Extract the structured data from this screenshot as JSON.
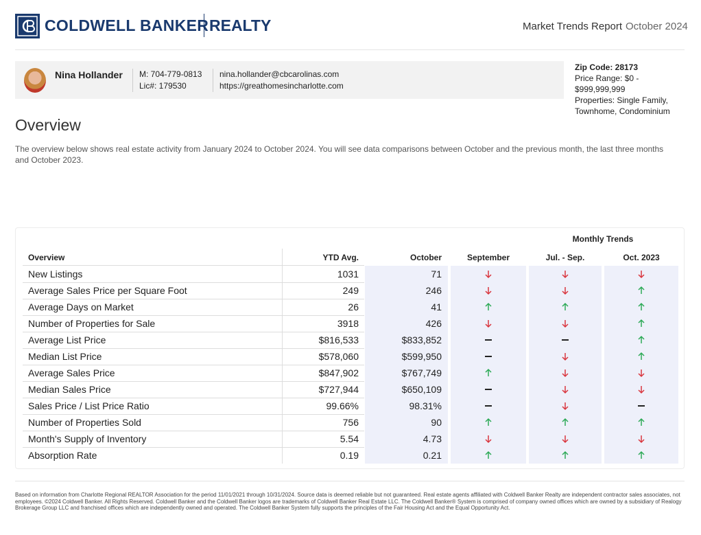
{
  "header": {
    "brand": "COLDWELL BANKER",
    "brand_sub": "REALTY",
    "report_title": "Market Trends Report",
    "report_date": "October 2024"
  },
  "agent": {
    "name": "Nina Hollander",
    "phone": "M: 704-779-0813",
    "license": "Lic#: 179530",
    "email": "nina.hollander@cbcarolinas.com",
    "website": "https://greathomesincharlotte.com"
  },
  "filters": {
    "zip": "Zip Code: 28173",
    "price": "Price Range: $0 - $999,999,999",
    "properties": "Properties: Single Family, Townhome, Condominium"
  },
  "overview": {
    "title": "Overview",
    "text": "The overview below shows real estate activity from January 2024 to October 2024. You will see data comparisons between October and the previous month, the last three months and October 2023."
  },
  "table": {
    "group_header": "Monthly Trends",
    "columns": [
      "Overview",
      "YTD Avg.",
      "October",
      "September",
      "Jul. - Sep.",
      "Oct. 2023"
    ],
    "rows": [
      [
        "New Listings",
        "1031",
        "71"
      ],
      [
        "Average Sales Price per Square Foot",
        "249",
        "246"
      ],
      [
        "Average Days on Market",
        "26",
        "41"
      ],
      [
        "Number of Properties for Sale",
        "3918",
        "426"
      ],
      [
        "Average List Price",
        "$816,533",
        "$833,852"
      ],
      [
        "Median List Price",
        "$578,060",
        "$599,950"
      ],
      [
        "Average Sales Price",
        "$847,902",
        "$767,749"
      ],
      [
        "Median Sales Price",
        "$727,944",
        "$650,109"
      ],
      [
        "Sales Price / List Price Ratio",
        "99.66%",
        "98.31%"
      ],
      [
        "Number of Properties Sold",
        "756",
        "90"
      ],
      [
        "Month's Supply of Inventory",
        "5.54",
        "4.73"
      ],
      [
        "Absorption Rate",
        "0.19",
        "0.21"
      ]
    ],
    "trends": [
      [
        "down",
        "down",
        "down"
      ],
      [
        "down",
        "down",
        "up"
      ],
      [
        "up",
        "up",
        "up"
      ],
      [
        "down",
        "down",
        "up"
      ],
      [
        "flat",
        "flat",
        "up"
      ],
      [
        "flat",
        "down",
        "up"
      ],
      [
        "up",
        "down",
        "down"
      ],
      [
        "flat",
        "down",
        "down"
      ],
      [
        "flat",
        "down",
        "flat"
      ],
      [
        "up",
        "up",
        "up"
      ],
      [
        "down",
        "down",
        "down"
      ],
      [
        "up",
        "up",
        "up"
      ]
    ]
  },
  "footer": {
    "text": "Based on information from Charlotte Regional REALTOR Association for the period 11/01/2021 through 10/31/2024. Source data is deemed reliable but not guaranteed. Real estate agents affiliated with Coldwell Banker Realty are independent contractor sales associates, not employees. ©2024 Coldwell Banker. All Rights Reserved. Coldwell Banker and the Coldwell Banker logos are trademarks of Coldwell Banker Real Estate LLC. The Coldwell Banker® System is comprised of company owned offices which are owned by a subsidiary of Realogy Brokerage Group LLC and franchised offices which are independently owned and operated. The Coldwell Banker System fully supports the principles of the Fair Housing Act and the Equal Opportunity Act."
  }
}
